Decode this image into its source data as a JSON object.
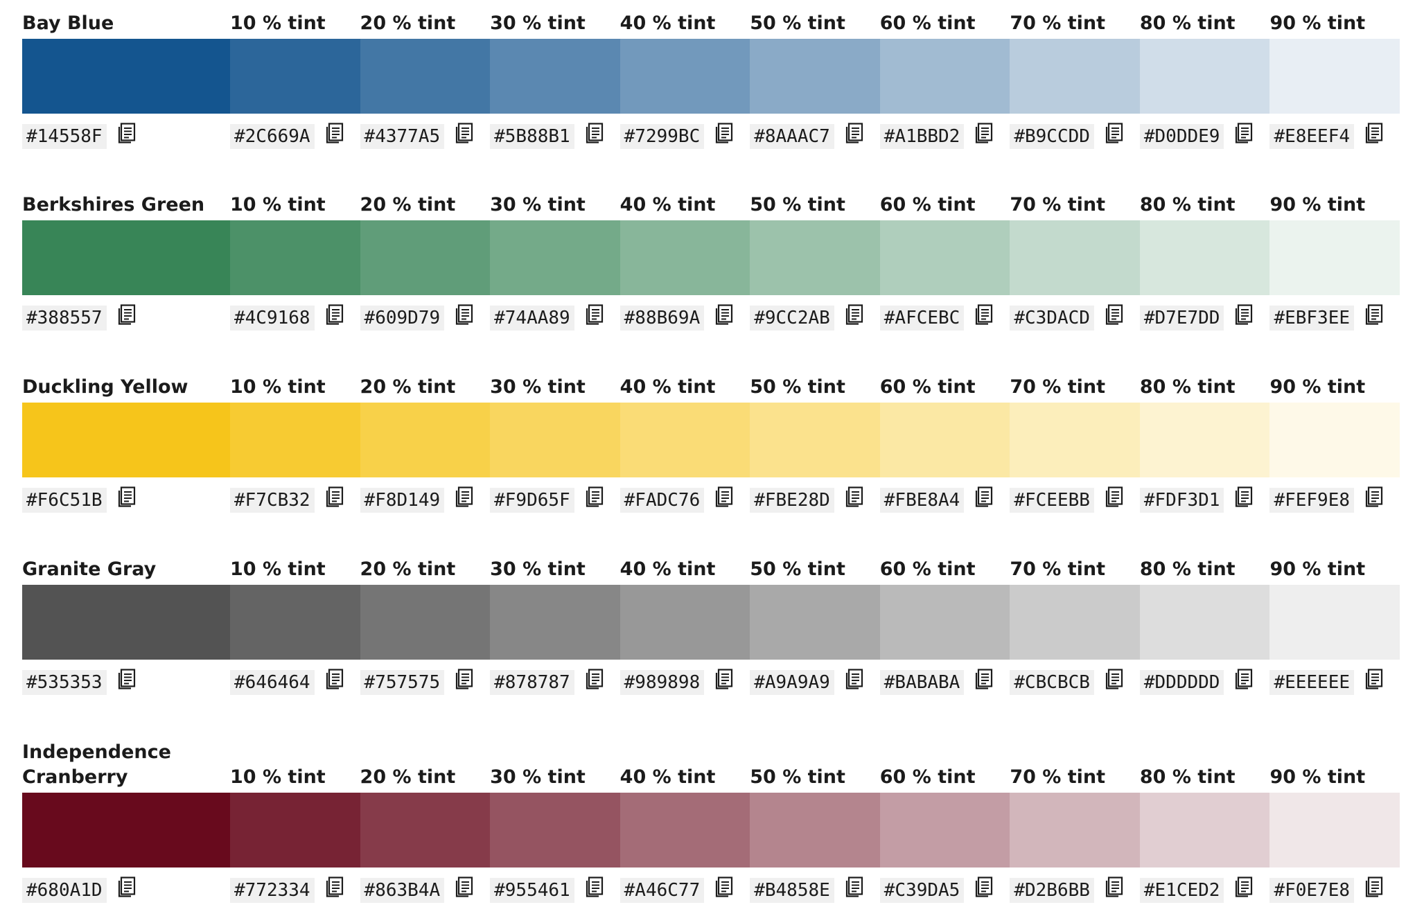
{
  "palettes": [
    {
      "name": "Bay Blue",
      "base_hex": "#14558F",
      "tint_labels": [
        "10 % tint",
        "20 % tint",
        "30 % tint",
        "40 % tint",
        "50 % tint",
        "60 % tint",
        "70 % tint",
        "80 % tint",
        "90 % tint"
      ],
      "tints": [
        "#2C669A",
        "#4377A5",
        "#5B88B1",
        "#7299BC",
        "#8AAAC7",
        "#A1BBD2",
        "#B9CCDD",
        "#D0DDE9",
        "#E8EEF4"
      ]
    },
    {
      "name": "Berkshires Green",
      "base_hex": "#388557",
      "tint_labels": [
        "10 % tint",
        "20 % tint",
        "30 % tint",
        "40 % tint",
        "50 % tint",
        "60 % tint",
        "70 % tint",
        "80 % tint",
        "90 % tint"
      ],
      "tints": [
        "#4C9168",
        "#609D79",
        "#74AA89",
        "#88B69A",
        "#9CC2AB",
        "#AFCEBC",
        "#C3DACD",
        "#D7E7DD",
        "#EBF3EE"
      ]
    },
    {
      "name": "Duckling Yellow",
      "base_hex": "#F6C51B",
      "tint_labels": [
        "10 % tint",
        "20 % tint",
        "30 % tint",
        "40 % tint",
        "50 % tint",
        "60 % tint",
        "70 % tint",
        "80 % tint",
        "90 % tint"
      ],
      "tints": [
        "#F7CB32",
        "#F8D149",
        "#F9D65F",
        "#FADC76",
        "#FBE28D",
        "#FBE8A4",
        "#FCEEBB",
        "#FDF3D1",
        "#FEF9E8"
      ]
    },
    {
      "name": "Granite Gray",
      "base_hex": "#535353",
      "tint_labels": [
        "10 % tint",
        "20 % tint",
        "30 % tint",
        "40 % tint",
        "50 % tint",
        "60 % tint",
        "70 % tint",
        "80 % tint",
        "90 % tint"
      ],
      "tints": [
        "#646464",
        "#757575",
        "#878787",
        "#989898",
        "#A9A9A9",
        "#BABABA",
        "#CBCBCB",
        "#DDDDDD",
        "#EEEEEE"
      ]
    },
    {
      "name": "Independence Cranberry",
      "base_hex": "#680A1D",
      "tint_labels": [
        "10 % tint",
        "20 % tint",
        "30 % tint",
        "40 % tint",
        "50 % tint",
        "60 % tint",
        "70 % tint",
        "80 % tint",
        "90 % tint"
      ],
      "tints": [
        "#772334",
        "#863B4A",
        "#955461",
        "#A46C77",
        "#B4858E",
        "#C39DA5",
        "#D2B6BB",
        "#E1CED2",
        "#F0E7E8"
      ]
    }
  ],
  "icons": {
    "copy": "copy-icon"
  }
}
